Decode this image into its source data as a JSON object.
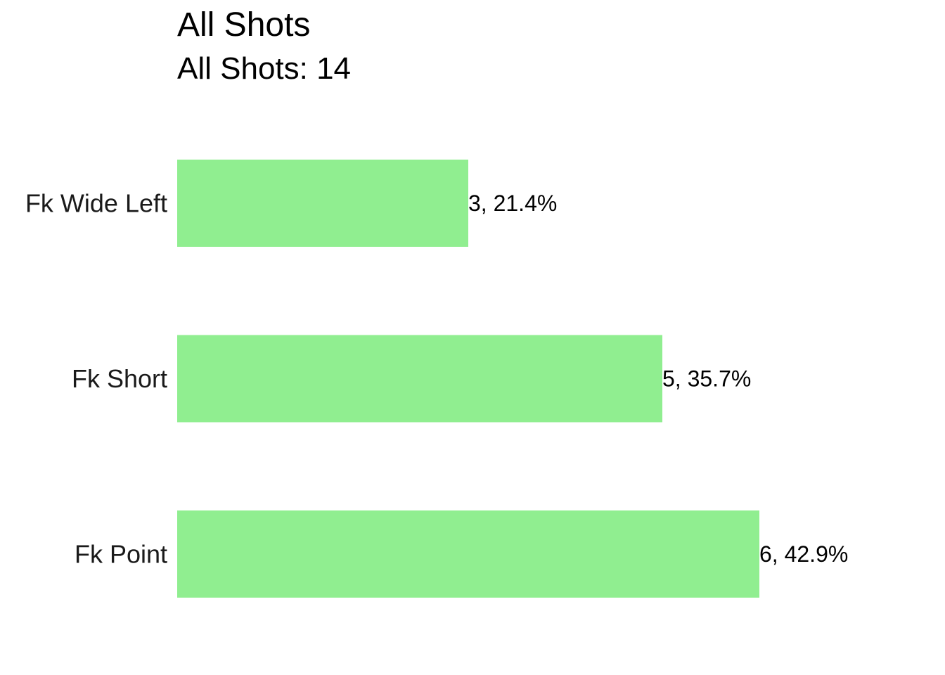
{
  "chart_data": {
    "type": "bar",
    "orientation": "horizontal",
    "title": "All Shots",
    "subtitle": "All Shots: 14",
    "categories": [
      "Fk Wide Left",
      "Fk Short",
      "Fk Point"
    ],
    "values": [
      3,
      5,
      6
    ],
    "data_labels": [
      "3, 21.4%",
      "5, 35.7%",
      "6, 42.9%"
    ],
    "xlim": [
      0,
      6
    ],
    "bar_color": "#90EE90",
    "grid": false,
    "legend": "none"
  }
}
